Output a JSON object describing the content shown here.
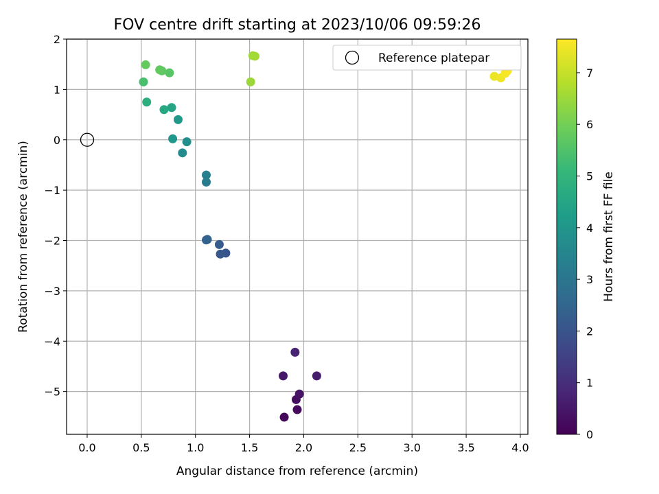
{
  "chart_data": {
    "type": "scatter",
    "title": "FOV centre drift starting at 2023/10/06 09:59:26",
    "xlabel": "Angular distance from reference (arcmin)",
    "ylabel": "Rotation from reference (arcmin)",
    "xlim": [
      -0.19,
      4.07
    ],
    "ylim": [
      -5.85,
      2.0
    ],
    "xticks": [
      0.0,
      0.5,
      1.0,
      1.5,
      2.0,
      2.5,
      3.0,
      3.5,
      4.0
    ],
    "xtick_labels": [
      "0.0",
      "0.5",
      "1.0",
      "1.5",
      "2.0",
      "2.5",
      "3.0",
      "3.5",
      "4.0"
    ],
    "yticks": [
      2,
      1,
      0,
      -1,
      -2,
      -3,
      -4,
      -5
    ],
    "ytick_labels": [
      "2",
      "1",
      "0",
      "−1",
      "−2",
      "−3",
      "−4",
      "−5"
    ],
    "grid": true,
    "legend_placement": "top-right",
    "legend": [
      {
        "label": "Reference platepar",
        "marker": "open-circle"
      }
    ],
    "reference_point": {
      "x": 0.0,
      "y": 0.0
    },
    "colorbar": {
      "label": "Hours from first FF file",
      "colormap": "viridis",
      "range": [
        0,
        7.65
      ],
      "ticks": [
        0,
        1,
        2,
        3,
        4,
        5,
        6,
        7
      ],
      "tick_labels": [
        "0",
        "1",
        "2",
        "3",
        "4",
        "5",
        "6",
        "7"
      ],
      "stops": [
        "#440154",
        "#482878",
        "#3e4989",
        "#31688e",
        "#26828e",
        "#1f9e89",
        "#35b779",
        "#6ece58",
        "#b5de2b",
        "#fde725"
      ]
    },
    "points": [
      {
        "x": 1.82,
        "y": -5.51,
        "c": 0.1
      },
      {
        "x": 1.94,
        "y": -5.36,
        "c": 0.2
      },
      {
        "x": 1.93,
        "y": -5.16,
        "c": 0.3
      },
      {
        "x": 1.96,
        "y": -5.05,
        "c": 0.4
      },
      {
        "x": 1.81,
        "y": -4.69,
        "c": 0.5
      },
      {
        "x": 2.12,
        "y": -4.69,
        "c": 0.6
      },
      {
        "x": 1.92,
        "y": -4.22,
        "c": 0.75
      },
      {
        "x": 1.28,
        "y": -2.25,
        "c": 2.0
      },
      {
        "x": 1.23,
        "y": -2.27,
        "c": 2.1
      },
      {
        "x": 1.22,
        "y": -2.08,
        "c": 2.2
      },
      {
        "x": 1.1,
        "y": -1.99,
        "c": 2.35
      },
      {
        "x": 1.11,
        "y": -1.98,
        "c": 2.4
      },
      {
        "x": 1.1,
        "y": -0.84,
        "c": 3.2
      },
      {
        "x": 1.1,
        "y": -0.7,
        "c": 3.3
      },
      {
        "x": 0.88,
        "y": -0.26,
        "c": 3.7
      },
      {
        "x": 0.92,
        "y": -0.04,
        "c": 3.8
      },
      {
        "x": 0.79,
        "y": 0.02,
        "c": 4.0
      },
      {
        "x": 0.84,
        "y": 0.4,
        "c": 4.1
      },
      {
        "x": 0.78,
        "y": 0.64,
        "c": 4.5
      },
      {
        "x": 0.71,
        "y": 0.6,
        "c": 4.6
      },
      {
        "x": 0.55,
        "y": 0.75,
        "c": 4.8
      },
      {
        "x": 0.52,
        "y": 1.15,
        "c": 5.4
      },
      {
        "x": 0.76,
        "y": 1.33,
        "c": 5.6
      },
      {
        "x": 0.69,
        "y": 1.37,
        "c": 5.7
      },
      {
        "x": 0.67,
        "y": 1.39,
        "c": 5.75
      },
      {
        "x": 0.54,
        "y": 1.49,
        "c": 5.8
      },
      {
        "x": 1.51,
        "y": 1.15,
        "c": 6.5
      },
      {
        "x": 1.53,
        "y": 1.67,
        "c": 6.55
      },
      {
        "x": 1.55,
        "y": 1.66,
        "c": 6.6
      },
      {
        "x": 3.76,
        "y": 1.26,
        "c": 7.45
      },
      {
        "x": 3.82,
        "y": 1.23,
        "c": 7.5
      },
      {
        "x": 3.86,
        "y": 1.32,
        "c": 7.55
      },
      {
        "x": 3.88,
        "y": 1.37,
        "c": 7.6
      }
    ]
  }
}
